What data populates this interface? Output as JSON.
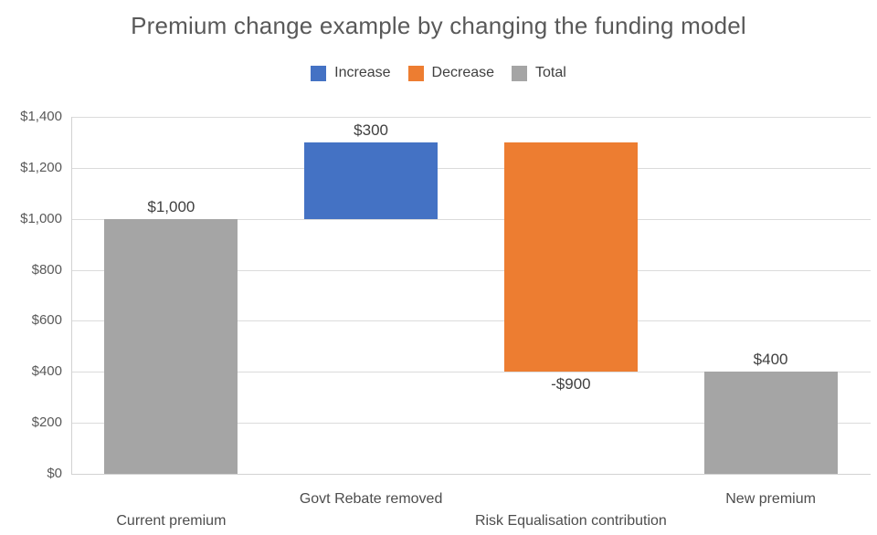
{
  "title": "Premium change example by changing the funding model",
  "legend": {
    "items": [
      {
        "label": "Increase",
        "role": "increase"
      },
      {
        "label": "Decrease",
        "role": "decrease"
      },
      {
        "label": "Total",
        "role": "total"
      }
    ]
  },
  "colors": {
    "increase": "#4472C4",
    "decrease": "#ED7D31",
    "total": "#A5A5A5",
    "gridline": "#DBDBDB",
    "axis_line": "#D2D2D2",
    "tick_text": "#595959",
    "title_text": "#595959",
    "data_label_text": "#404040",
    "category_text": "#4D4D4D",
    "background": "#FFFFFF"
  },
  "chart_data": {
    "type": "bar",
    "subtype": "waterfall",
    "title": "Premium change example by changing the funding model",
    "categories": [
      "Current premium",
      "Govt Rebate removed",
      "Risk Equalisation contribution",
      "New premium"
    ],
    "bars": [
      {
        "category": "Current premium",
        "role": "total",
        "base": 0,
        "top": 1000,
        "value": 1000,
        "value_label": "$1,000",
        "label_position": "above",
        "category_label_row": "lower"
      },
      {
        "category": "Govt Rebate removed",
        "role": "increase",
        "base": 1000,
        "top": 1300,
        "value": 300,
        "value_label": "$300",
        "label_position": "above",
        "category_label_row": "upper"
      },
      {
        "category": "Risk Equalisation contribution",
        "role": "decrease",
        "base": 400,
        "top": 1300,
        "value": -900,
        "value_label": "-$900",
        "label_position": "below",
        "category_label_row": "lower"
      },
      {
        "category": "New premium",
        "role": "total",
        "base": 0,
        "top": 400,
        "value": 400,
        "value_label": "$400",
        "label_position": "above",
        "category_label_row": "upper"
      }
    ],
    "y_axis": {
      "min": 0,
      "max": 1400,
      "step": 200,
      "tick_labels": [
        "$0",
        "$200",
        "$400",
        "$600",
        "$800",
        "$1,000",
        "$1,200",
        "$1,400"
      ]
    },
    "ylim": [
      0,
      1400
    ],
    "legend_entries": [
      "Increase",
      "Decrease",
      "Total"
    ],
    "legend_position": "top",
    "grid": true
  }
}
